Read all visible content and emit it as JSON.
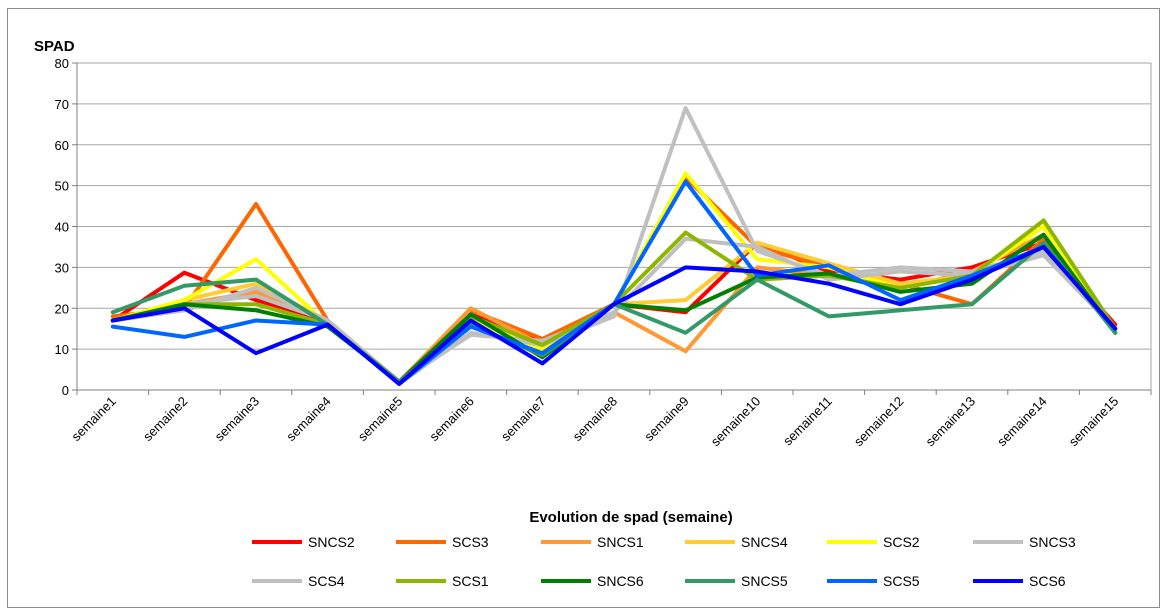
{
  "chart_data": {
    "type": "line",
    "ylabel": "SPAD",
    "xlabel": "Evolution de spad (semaine)",
    "ylim": [
      0,
      80
    ],
    "yticks": [
      0,
      10,
      20,
      30,
      40,
      50,
      60,
      70,
      80
    ],
    "grid": true,
    "legend_position": "bottom",
    "categories": [
      "semaine1",
      "semaine2",
      "semaine3",
      "semaine4",
      "semaine5",
      "semaine6",
      "semaine7",
      "semaine8",
      "semaine9",
      "semaine10",
      "semaine11",
      "semaine12",
      "semaine13",
      "semaine14",
      "semaine15"
    ],
    "series": [
      {
        "name": "SNCS2",
        "color": "#ff0000",
        "values": [
          17,
          28.7,
          22,
          17,
          2,
          19,
          12,
          21,
          19,
          36,
          29,
          27,
          30,
          36,
          16
        ]
      },
      {
        "name": "SCS3",
        "color": "#ff6600",
        "values": [
          18,
          20,
          45.5,
          17,
          2,
          19.5,
          12.5,
          21,
          52,
          35,
          30,
          26,
          21,
          37,
          15
        ]
      },
      {
        "name": "SNCS1",
        "color": "#ff9933",
        "values": [
          17,
          21,
          24,
          17,
          2,
          20,
          11,
          19,
          9.5,
          30,
          28,
          25,
          29,
          38,
          14
        ]
      },
      {
        "name": "SNCS4",
        "color": "#ffcc33",
        "values": [
          17,
          22,
          26,
          17,
          2,
          18,
          10,
          21,
          22,
          36,
          31,
          26,
          28,
          40,
          15
        ]
      },
      {
        "name": "SCS2",
        "color": "#ffff00",
        "values": [
          17,
          22,
          32,
          16,
          2,
          17,
          10,
          21,
          53,
          32,
          30,
          25,
          28,
          40,
          15
        ]
      },
      {
        "name": "SNCS3",
        "color": "#c0c0c0",
        "values": [
          17,
          19.5,
          25,
          17,
          1.5,
          14,
          11,
          18,
          69,
          34,
          28,
          30,
          29,
          34,
          15
        ]
      },
      {
        "name": "SCS4",
        "color": "#bfbfbf",
        "values": [
          17,
          21,
          23,
          17,
          2,
          13.5,
          12,
          19,
          37,
          35,
          27,
          29,
          28,
          33,
          15
        ]
      },
      {
        "name": "SCS1",
        "color": "#8db600",
        "values": [
          17,
          21,
          21,
          16,
          2,
          18,
          11,
          21,
          38.5,
          27,
          28,
          25,
          28,
          41.5,
          15
        ]
      },
      {
        "name": "SNCS6",
        "color": "#008000",
        "values": [
          17,
          21,
          19.5,
          15.5,
          2,
          18.5,
          8,
          21,
          19.5,
          27.5,
          28.5,
          24,
          26,
          38,
          14
        ]
      },
      {
        "name": "SNCS5",
        "color": "#339966",
        "values": [
          19,
          25.5,
          27,
          16,
          2,
          16,
          8.5,
          21,
          14,
          27,
          18,
          19.5,
          21,
          36,
          14
        ]
      },
      {
        "name": "SCS5",
        "color": "#0066ff",
        "values": [
          15.5,
          13,
          17,
          16,
          1.5,
          15.5,
          9,
          21,
          51,
          28,
          30.5,
          22,
          28,
          35,
          15
        ]
      },
      {
        "name": "SCS6",
        "color": "#0000ff",
        "values": [
          17,
          20,
          9,
          16,
          1.5,
          17,
          6.5,
          21,
          30,
          29,
          26,
          21,
          27,
          35,
          15
        ]
      }
    ]
  }
}
